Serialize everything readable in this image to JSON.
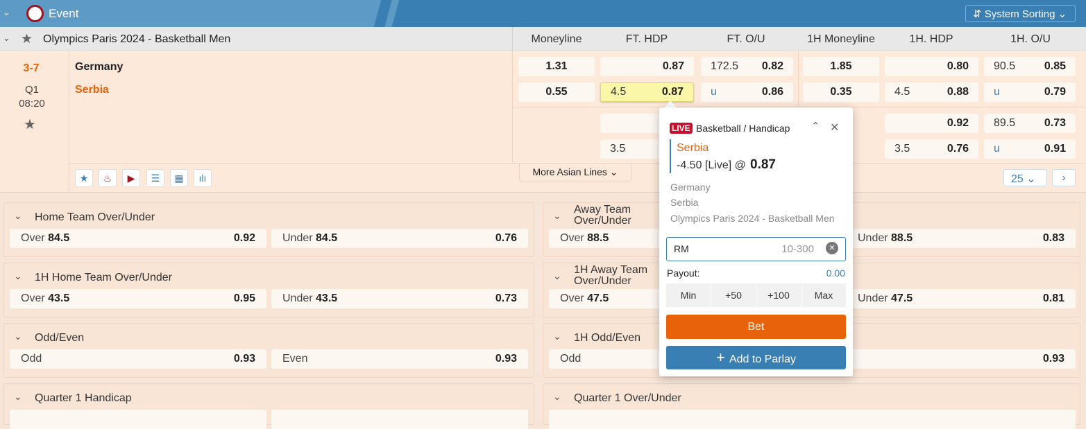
{
  "header": {
    "title": "Event",
    "sorting": "System Sorting"
  },
  "league": {
    "name": "Olympics Paris 2024 - Basketball Men"
  },
  "columns": [
    "Moneyline",
    "FT. HDP",
    "FT. O/U",
    "1H Moneyline",
    "1H. HDP",
    "1H. O/U"
  ],
  "match": {
    "score": "3-7",
    "period": "Q1",
    "clock": "08:20",
    "home": "Germany",
    "away": "Serbia",
    "rows": [
      [
        [
          "",
          "1.31"
        ],
        [
          "",
          "0.87"
        ],
        [
          "172.5",
          "0.82"
        ],
        [
          "",
          "1.85"
        ],
        [
          "",
          "0.80"
        ],
        [
          "90.5",
          "0.85"
        ]
      ],
      [
        [
          "",
          "0.55"
        ],
        [
          "4.5",
          "0.87"
        ],
        [
          "u",
          "0.86"
        ],
        [
          "",
          "0.35"
        ],
        [
          "4.5",
          "0.88"
        ],
        [
          "u",
          "0.79"
        ]
      ],
      [
        null,
        [
          "",
          ""
        ],
        null,
        null,
        [
          "",
          "0.92"
        ],
        [
          "89.5",
          "0.73"
        ]
      ],
      [
        null,
        [
          "3.5",
          ""
        ],
        null,
        null,
        [
          "3.5",
          "0.76"
        ],
        [
          "u",
          "0.91"
        ]
      ]
    ],
    "more_lines": "More Asian Lines",
    "page_size": "25"
  },
  "markets": [
    {
      "title": "Home Team Over/Under",
      "a": [
        "Over",
        "84.5",
        "0.92"
      ],
      "b": [
        "Under",
        "84.5",
        "0.76"
      ]
    },
    {
      "title": "Away Team Over/Under",
      "a": [
        "Over",
        "88.5",
        ""
      ],
      "b": [
        "Under",
        "88.5",
        "0.83"
      ]
    },
    {
      "title": "1H Home Team Over/Under",
      "a": [
        "Over",
        "43.5",
        "0.95"
      ],
      "b": [
        "Under",
        "43.5",
        "0.73"
      ]
    },
    {
      "title": "1H Away Team Over/Under",
      "a": [
        "Over",
        "47.5",
        ""
      ],
      "b": [
        "Under",
        "47.5",
        "0.81"
      ]
    },
    {
      "title": "Odd/Even",
      "a": [
        "Odd",
        "",
        "0.93"
      ],
      "b": [
        "Even",
        "",
        "0.93"
      ]
    },
    {
      "title": "1H Odd/Even",
      "a": [
        "Odd",
        "",
        ""
      ],
      "b": [
        "",
        "",
        "0.93"
      ]
    },
    {
      "title": "Quarter 1 Handicap"
    },
    {
      "title": "Quarter 1 Over/Under"
    }
  ],
  "betslip": {
    "live": "LIVE",
    "type": "Basketball / Handicap",
    "selection": "Serbia",
    "line": "-4.50 [Live] @",
    "odds": "0.87",
    "home": "Germany",
    "away": "Serbia",
    "league": "Olympics Paris 2024 - Basketball Men",
    "currency": "RM",
    "stake_placeholder": "10-300",
    "payout_label": "Payout:",
    "payout": "0.00",
    "quick": [
      "Min",
      "+50",
      "+100",
      "Max"
    ],
    "bet": "Bet",
    "parlay": "Add to Parlay"
  },
  "colors": {
    "accent": "#e8620a",
    "blue": "#3a7fb3",
    "live": "#c8102e"
  }
}
